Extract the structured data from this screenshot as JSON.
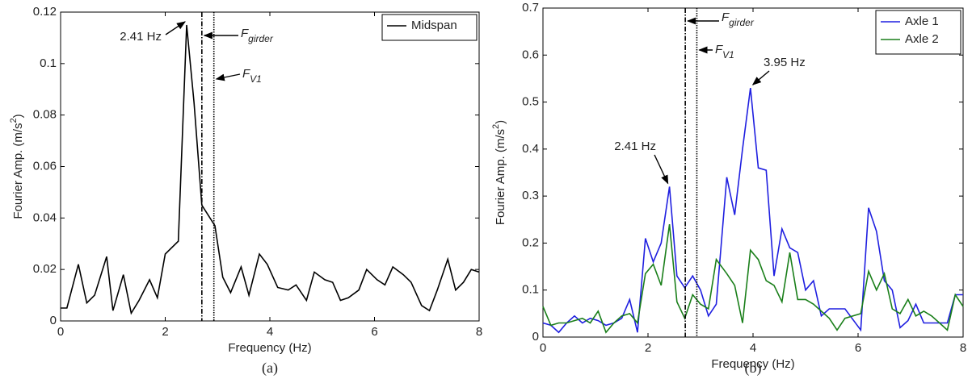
{
  "chart_data": [
    {
      "type": "line",
      "caption": "(a)",
      "xlabel": "Frequency (Hz)",
      "ylabel": {
        "text": "Fourier Amp. (m/s",
        "sup": "2",
        "tail": ")"
      },
      "xlim": [
        0,
        8
      ],
      "ylim": [
        0,
        0.12
      ],
      "xticks": [
        0,
        2,
        4,
        6,
        8
      ],
      "yticks": [
        0,
        0.02,
        0.04,
        0.06,
        0.08,
        0.1,
        0.12
      ],
      "legend": "upper right",
      "x": [
        0,
        0.12,
        0.34,
        0.5,
        0.65,
        0.88,
        1.0,
        1.2,
        1.35,
        1.5,
        1.7,
        1.85,
        2.0,
        2.25,
        2.41,
        2.55,
        2.7,
        2.95,
        3.1,
        3.25,
        3.45,
        3.6,
        3.8,
        3.95,
        4.15,
        4.35,
        4.5,
        4.7,
        4.85,
        5.05,
        5.2,
        5.35,
        5.5,
        5.7,
        5.85,
        6.05,
        6.2,
        6.35,
        6.55,
        6.7,
        6.9,
        7.05,
        7.2,
        7.4,
        7.55,
        7.7,
        7.85,
        8.0
      ],
      "series": [
        {
          "name": "Midspan",
          "color": "#000000",
          "values": [
            0.005,
            0.005,
            0.022,
            0.007,
            0.01,
            0.025,
            0.004,
            0.018,
            0.003,
            0.008,
            0.016,
            0.009,
            0.026,
            0.031,
            0.115,
            0.085,
            0.045,
            0.037,
            0.017,
            0.011,
            0.021,
            0.01,
            0.026,
            0.022,
            0.013,
            0.012,
            0.014,
            0.008,
            0.019,
            0.016,
            0.015,
            0.008,
            0.009,
            0.012,
            0.02,
            0.016,
            0.014,
            0.021,
            0.018,
            0.015,
            0.006,
            0.004,
            0.012,
            0.024,
            0.012,
            0.015,
            0.02,
            0.019
          ]
        }
      ],
      "vlines": [
        {
          "x": 2.7,
          "style": "dashdot",
          "label": "F",
          "sub": "girder"
        },
        {
          "x": 2.93,
          "style": "dotted",
          "label": "F",
          "sub": "V1"
        }
      ],
      "annotations": [
        {
          "text": "2.41 Hz",
          "x": 2.41,
          "y": 0.115
        }
      ]
    },
    {
      "type": "line",
      "caption": "(b)",
      "xlabel": "Frequency (Hz)",
      "ylabel": {
        "text": "Fourier Amp. (m/s",
        "sup": "2",
        "tail": ")"
      },
      "xlim": [
        0,
        8
      ],
      "ylim": [
        0,
        0.7
      ],
      "xticks": [
        0,
        2,
        4,
        6,
        8
      ],
      "yticks": [
        0,
        0.1,
        0.2,
        0.3,
        0.4,
        0.5,
        0.6,
        0.7
      ],
      "legend": "upper right",
      "x": [
        0,
        0.15,
        0.3,
        0.45,
        0.6,
        0.75,
        0.9,
        1.05,
        1.2,
        1.35,
        1.5,
        1.65,
        1.8,
        1.95,
        2.1,
        2.25,
        2.41,
        2.55,
        2.7,
        2.85,
        3.0,
        3.15,
        3.3,
        3.5,
        3.65,
        3.8,
        3.95,
        4.1,
        4.25,
        4.4,
        4.55,
        4.7,
        4.85,
        5.0,
        5.15,
        5.3,
        5.45,
        5.6,
        5.75,
        6.05,
        6.2,
        6.35,
        6.5,
        6.65,
        6.8,
        6.95,
        7.1,
        7.25,
        7.4,
        7.55,
        7.7,
        7.85,
        8.0
      ],
      "series": [
        {
          "name": "Axle 1",
          "color": "#1f1fe0",
          "values": [
            0.03,
            0.025,
            0.01,
            0.03,
            0.045,
            0.03,
            0.04,
            0.035,
            0.025,
            0.03,
            0.04,
            0.08,
            0.01,
            0.21,
            0.16,
            0.2,
            0.32,
            0.13,
            0.105,
            0.13,
            0.1,
            0.045,
            0.07,
            0.34,
            0.26,
            0.4,
            0.53,
            0.36,
            0.355,
            0.13,
            0.23,
            0.19,
            0.18,
            0.1,
            0.12,
            0.045,
            0.06,
            0.06,
            0.06,
            0.015,
            0.275,
            0.225,
            0.12,
            0.1,
            0.02,
            0.035,
            0.07,
            0.03,
            0.03,
            0.03,
            0.03,
            0.09,
            0.09
          ]
        },
        {
          "name": "Axle 2",
          "color": "#1a7f1a",
          "values": [
            0.065,
            0.025,
            0.03,
            0.03,
            0.035,
            0.04,
            0.03,
            0.055,
            0.01,
            0.03,
            0.045,
            0.05,
            0.03,
            0.135,
            0.155,
            0.11,
            0.24,
            0.075,
            0.04,
            0.09,
            0.07,
            0.06,
            0.165,
            0.135,
            0.11,
            0.03,
            0.185,
            0.165,
            0.12,
            0.11,
            0.075,
            0.18,
            0.08,
            0.08,
            0.07,
            0.055,
            0.04,
            0.015,
            0.04,
            0.05,
            0.14,
            0.1,
            0.135,
            0.06,
            0.05,
            0.08,
            0.045,
            0.055,
            0.045,
            0.03,
            0.015,
            0.09,
            0.065
          ]
        }
      ],
      "vlines": [
        {
          "x": 2.71,
          "style": "dashdot",
          "label": "F",
          "sub": "girder"
        },
        {
          "x": 2.93,
          "style": "dotted",
          "label": "F",
          "sub": "V1"
        }
      ],
      "annotations": [
        {
          "text": "3.95 Hz",
          "x": 3.95,
          "y": 0.53
        },
        {
          "text": "2.41 Hz",
          "x": 2.41,
          "y": 0.32
        }
      ]
    }
  ]
}
